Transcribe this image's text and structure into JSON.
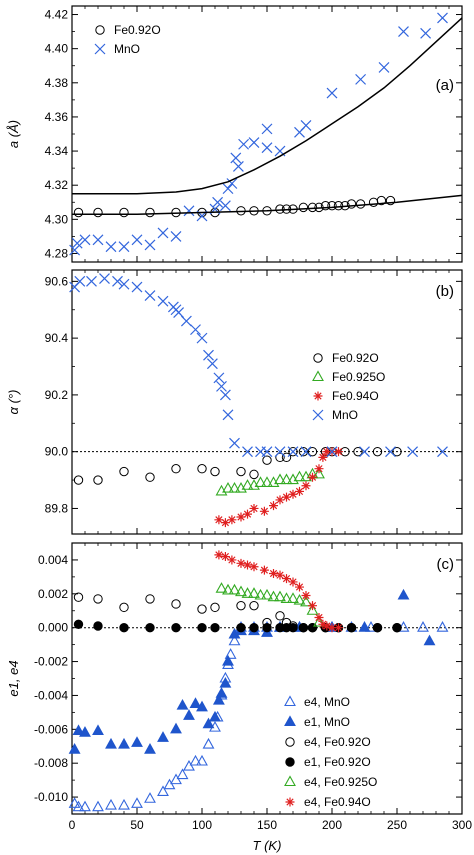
{
  "chart_data": [
    {
      "type": "scatter",
      "panel_label": "(a)",
      "ylabel": "a (Å)",
      "xlim": [
        0,
        300
      ],
      "ylim": [
        4.275,
        4.425
      ],
      "yticks": [
        4.28,
        4.3,
        4.32,
        4.34,
        4.36,
        4.38,
        4.4,
        4.42
      ],
      "yticklabels": [
        "4.28",
        "4.30",
        "4.32",
        "4.34",
        "4.36",
        "4.38",
        "4.40",
        "4.42"
      ],
      "legend_position": "top-left",
      "series": [
        {
          "name": "Fe0.92O",
          "marker": "circle-open",
          "color": "#000000",
          "x": [
            5,
            20,
            40,
            60,
            80,
            100,
            110,
            130,
            140,
            150,
            160,
            165,
            170,
            178,
            185,
            190,
            195,
            200,
            205,
            210,
            215,
            222,
            232,
            238,
            245
          ],
          "y": [
            4.304,
            4.304,
            4.304,
            4.304,
            4.304,
            4.304,
            4.304,
            4.305,
            4.305,
            4.305,
            4.306,
            4.306,
            4.306,
            4.307,
            4.307,
            4.307,
            4.308,
            4.308,
            4.308,
            4.308,
            4.309,
            4.309,
            4.31,
            4.311,
            4.311
          ]
        },
        {
          "name": "MnO",
          "marker": "x",
          "color": "#3366dd",
          "x": [
            2,
            4,
            10,
            20,
            30,
            40,
            50,
            60,
            70,
            80,
            90,
            100,
            110,
            112,
            118,
            120,
            123,
            126,
            128,
            132,
            140,
            150,
            150,
            160,
            175,
            180,
            200,
            222,
            240,
            255,
            272,
            285
          ],
          "y": [
            4.282,
            4.286,
            4.288,
            4.288,
            4.284,
            4.284,
            4.288,
            4.285,
            4.292,
            4.29,
            4.305,
            4.302,
            4.306,
            4.31,
            4.308,
            4.318,
            4.321,
            4.336,
            4.331,
            4.344,
            4.345,
            4.353,
            4.342,
            4.34,
            4.351,
            4.355,
            4.374,
            4.382,
            4.389,
            4.41,
            4.409,
            4.418
          ]
        },
        {
          "name": "",
          "style": "line",
          "color": "#000000",
          "x": [
            0,
            50,
            80,
            100,
            120,
            140,
            160,
            180,
            200,
            220,
            240,
            260,
            280,
            300
          ],
          "y": [
            4.315,
            4.315,
            4.316,
            4.318,
            4.322,
            4.329,
            4.337,
            4.346,
            4.356,
            4.366,
            4.377,
            4.39,
            4.404,
            4.418
          ]
        },
        {
          "name": "",
          "style": "line",
          "color": "#000000",
          "x": [
            0,
            50,
            100,
            150,
            200,
            250,
            300
          ],
          "y": [
            4.303,
            4.303,
            4.304,
            4.305,
            4.307,
            4.31,
            4.314
          ]
        }
      ]
    },
    {
      "type": "scatter",
      "panel_label": "(b)",
      "ylabel": "α (°)",
      "xlim": [
        0,
        300
      ],
      "ylim": [
        89.71,
        90.64
      ],
      "yticks": [
        89.8,
        90.0,
        90.2,
        90.4,
        90.6
      ],
      "yticklabels": [
        "89.8",
        "90.0",
        "90.2",
        "90.4",
        "90.6"
      ],
      "reference_line": 90.0,
      "legend_position": "right",
      "series": [
        {
          "name": "Fe0.92O",
          "marker": "circle-open",
          "color": "#000000",
          "x": [
            5,
            20,
            40,
            60,
            80,
            100,
            110,
            130,
            140,
            150,
            160,
            165,
            170,
            178,
            185,
            195,
            200,
            210,
            220,
            235,
            250
          ],
          "y": [
            89.9,
            89.9,
            89.93,
            89.91,
            89.94,
            89.94,
            89.93,
            89.93,
            89.92,
            89.97,
            89.98,
            89.98,
            90.0,
            90.0,
            90.0,
            90.0,
            90.0,
            90.0,
            90.0,
            90.0,
            90.0
          ]
        },
        {
          "name": "Fe0.925O",
          "marker": "triangle-open",
          "color": "#33aa22",
          "x": [
            115,
            120,
            125,
            130,
            135,
            140,
            145,
            150,
            155,
            160,
            165,
            170,
            175,
            180,
            185,
            190
          ],
          "y": [
            89.86,
            89.87,
            89.87,
            89.87,
            89.88,
            89.88,
            89.89,
            89.89,
            89.89,
            89.9,
            89.9,
            89.9,
            89.91,
            89.91,
            89.92,
            89.92
          ]
        },
        {
          "name": "Fe0.94O",
          "marker": "asterisk",
          "color": "#e02020",
          "x": [
            113,
            118,
            123,
            130,
            135,
            140,
            148,
            155,
            160,
            165,
            170,
            175,
            180,
            185,
            190,
            193,
            196,
            200,
            205
          ],
          "y": [
            89.76,
            89.75,
            89.76,
            89.77,
            89.78,
            89.8,
            89.79,
            89.81,
            89.83,
            89.84,
            89.85,
            89.86,
            89.88,
            89.91,
            89.94,
            89.98,
            90.0,
            90.0,
            90.0
          ]
        },
        {
          "name": "MnO",
          "marker": "x",
          "color": "#3366dd",
          "x": [
            2,
            6,
            15,
            25,
            35,
            40,
            50,
            60,
            70,
            78,
            80,
            82,
            88,
            95,
            100,
            105,
            108,
            113,
            115,
            118,
            120,
            125,
            135,
            145,
            150,
            160,
            170,
            180,
            200,
            225,
            245,
            262,
            285
          ],
          "y": [
            90.58,
            90.6,
            90.6,
            90.61,
            90.6,
            90.59,
            90.58,
            90.55,
            90.53,
            90.51,
            90.5,
            90.49,
            90.46,
            90.43,
            90.4,
            90.34,
            90.31,
            90.26,
            90.23,
            90.2,
            90.13,
            90.03,
            90.0,
            90.0,
            90.0,
            90.0,
            90.0,
            90.0,
            90.0,
            90.0,
            90.0,
            90.0,
            90.0
          ]
        }
      ]
    },
    {
      "type": "scatter",
      "panel_label": "(c)",
      "ylabel": "e1, e4",
      "xlabel": "T (K)",
      "xlim": [
        0,
        300
      ],
      "xticks": [
        0,
        50,
        100,
        150,
        200,
        250,
        300
      ],
      "xticklabels": [
        "0",
        "50",
        "100",
        "150",
        "200",
        "250",
        "300"
      ],
      "ylim": [
        -0.011,
        0.005
      ],
      "yticks": [
        -0.01,
        -0.008,
        -0.006,
        -0.004,
        -0.002,
        0.0,
        0.002,
        0.004
      ],
      "yticklabels": [
        "-0.010",
        "-0.008",
        "-0.006",
        "-0.004",
        "-0.002",
        "0.000",
        "0.002",
        "0.004"
      ],
      "reference_line": 0.0,
      "legend_position": "bottom-right",
      "series": [
        {
          "name": "e4, MnO",
          "marker": "triangle-open",
          "color": "#3366dd",
          "x": [
            2,
            5,
            10,
            20,
            30,
            40,
            50,
            60,
            70,
            75,
            80,
            85,
            90,
            95,
            100,
            105,
            110,
            112,
            115,
            118,
            120,
            122,
            125,
            130,
            140,
            150,
            160,
            175,
            200,
            215,
            230,
            255,
            270,
            285
          ],
          "y": [
            -0.0104,
            -0.0106,
            -0.0106,
            -0.0106,
            -0.0105,
            -0.0105,
            -0.0104,
            -0.0101,
            -0.0097,
            -0.0093,
            -0.009,
            -0.0087,
            -0.0082,
            -0.0079,
            -0.0079,
            -0.0069,
            -0.0059,
            -0.0053,
            -0.004,
            -0.003,
            -0.0022,
            -0.0016,
            -0.0008,
            0.0,
            0.0,
            0.0,
            0.0,
            0.0,
            0.0,
            0.0,
            0.0,
            0.0,
            0.0,
            0.0
          ]
        },
        {
          "name": "e1, MnO",
          "marker": "triangle-filled",
          "color": "#1f55cc",
          "x": [
            2,
            5,
            10,
            20,
            30,
            40,
            50,
            60,
            70,
            80,
            85,
            90,
            95,
            100,
            105,
            110,
            113,
            115,
            118,
            120,
            125,
            130,
            140,
            150,
            160,
            175,
            200,
            225,
            255,
            275
          ],
          "y": [
            -0.0072,
            -0.0061,
            -0.0062,
            -0.0061,
            -0.0069,
            -0.0069,
            -0.0068,
            -0.0072,
            -0.0065,
            -0.006,
            -0.0046,
            -0.0052,
            -0.0045,
            -0.0047,
            -0.0057,
            -0.0053,
            -0.0043,
            -0.0039,
            -0.0033,
            -0.002,
            -0.0004,
            -0.0002,
            -0.0002,
            -0.0003,
            0.0,
            0.0,
            0.0,
            0.0,
            0.0019,
            -0.0008
          ]
        },
        {
          "name": "e4, Fe0.92O",
          "marker": "circle-open",
          "color": "#000000",
          "x": [
            5,
            20,
            40,
            60,
            80,
            100,
            110,
            130,
            140,
            150,
            160,
            165,
            170,
            178,
            185,
            195,
            205,
            215,
            235,
            250
          ],
          "y": [
            0.0018,
            0.0017,
            0.0012,
            0.0017,
            0.0014,
            0.0011,
            0.0012,
            0.0013,
            0.0013,
            0.0003,
            0.0007,
            0.0003,
            0.0001,
            0.0,
            0.0,
            0.0,
            0.0,
            0.0,
            0.0,
            0.0
          ]
        },
        {
          "name": "e1, Fe0.92O",
          "marker": "circle-filled",
          "color": "#000000",
          "x": [
            5,
            20,
            40,
            60,
            80,
            100,
            110,
            130,
            140,
            150,
            160,
            165,
            170,
            178,
            185,
            195,
            205,
            215,
            235,
            250
          ],
          "y": [
            0.0002,
            0.0001,
            0.0,
            0.0,
            0.0,
            0.0,
            0.0,
            0.0,
            0.0,
            0.0,
            0.0,
            0.0,
            0.0,
            0.0,
            0.0,
            0.0,
            0.0,
            0.0,
            0.0,
            0.0
          ]
        },
        {
          "name": "e4, Fe0.925O",
          "marker": "triangle-open",
          "color": "#33aa22",
          "x": [
            115,
            120,
            125,
            130,
            135,
            140,
            145,
            150,
            155,
            160,
            165,
            170,
            175,
            180,
            185,
            190
          ],
          "y": [
            0.0023,
            0.0022,
            0.0022,
            0.0021,
            0.002,
            0.002,
            0.0019,
            0.0019,
            0.0018,
            0.0018,
            0.0017,
            0.0017,
            0.0016,
            0.0015,
            0.001,
            0.0003
          ]
        },
        {
          "name": "e4, Fe0.94O",
          "marker": "asterisk",
          "color": "#e02020",
          "x": [
            113,
            118,
            123,
            130,
            135,
            140,
            148,
            155,
            160,
            165,
            170,
            175,
            180,
            185,
            190,
            193,
            196,
            200,
            205
          ],
          "y": [
            0.0043,
            0.0042,
            0.004,
            0.0038,
            0.0037,
            0.0036,
            0.0034,
            0.0032,
            0.0031,
            0.0029,
            0.0027,
            0.0024,
            0.0019,
            0.0013,
            0.0006,
            0.0002,
            0.0001,
            0.0,
            0.0
          ]
        }
      ]
    }
  ]
}
